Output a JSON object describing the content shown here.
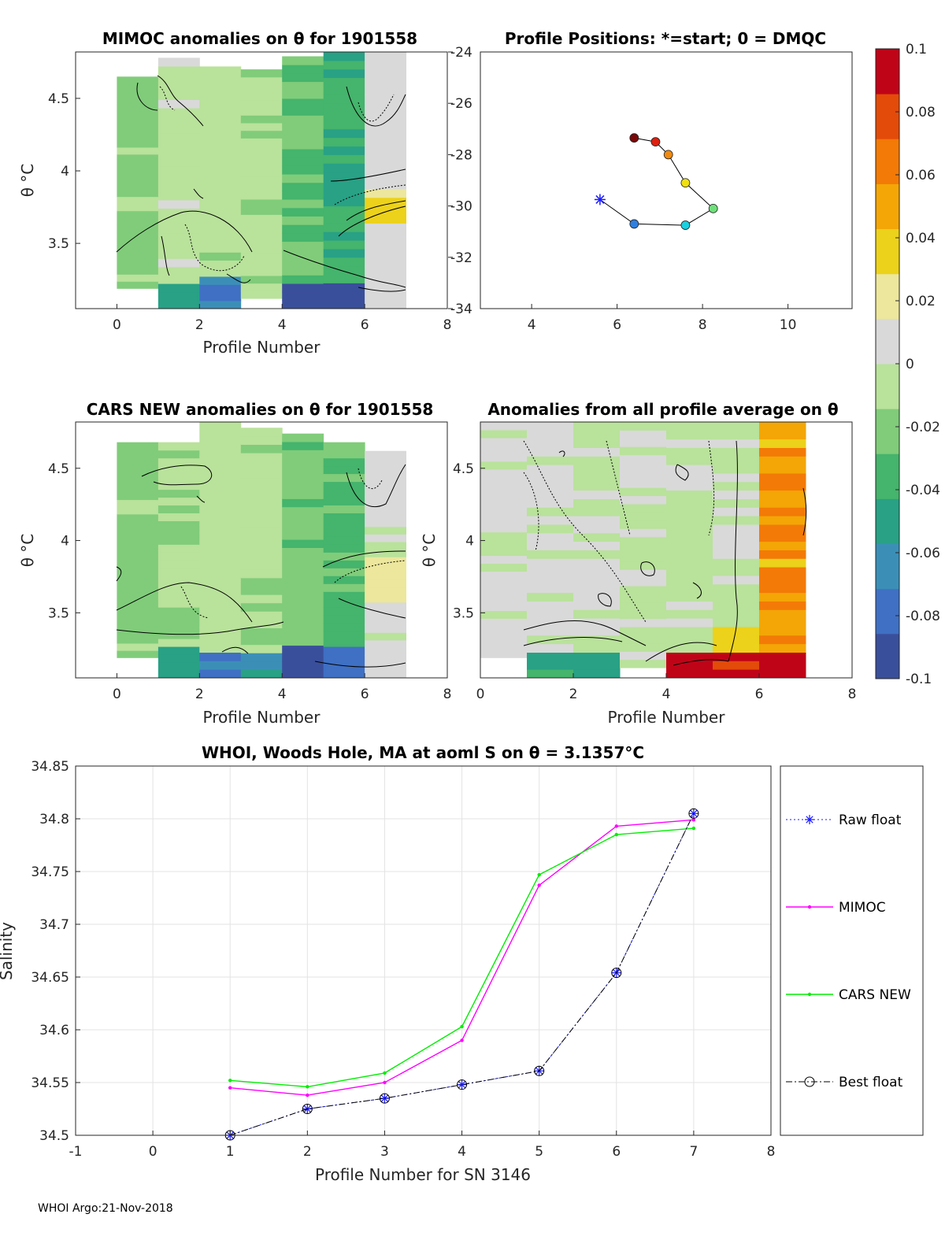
{
  "footer": "WHOI Argo:21-Nov-2018",
  "colors": {
    "mimoc_line": "#ff00ff",
    "cars_line": "#00ee00",
    "raw_float": "#1a1aff",
    "best_float": "#000000",
    "colormap": [
      "#3a4f9b",
      "#3f70c4",
      "#3b8fb7",
      "#28a185",
      "#45b46c",
      "#80cc7a",
      "#b9e29b",
      "#d9d9d9",
      "#ece79c",
      "#ecd21a",
      "#f3a606",
      "#f37a06",
      "#e34b0a",
      "#c00418"
    ]
  },
  "chart_data": [
    {
      "id": "mimoc",
      "type": "heatmap",
      "title": "MIMOC anomalies on θ  for 1901558",
      "xlabel": "Profile Number",
      "ylabel": "θ °C",
      "xlim": [
        -1,
        8
      ],
      "ylim": [
        3.05,
        4.82
      ],
      "xticks": [
        "0",
        "2",
        "4",
        "6",
        "8"
      ],
      "yticks": [
        "3.5",
        "4",
        "4.5"
      ]
    },
    {
      "id": "positions",
      "type": "scatter",
      "title": "Profile Positions: *=start; 0 = DMQC",
      "xlim": [
        2.8,
        11.5
      ],
      "ylim": [
        -34,
        -24
      ],
      "xticks": [
        "4",
        "6",
        "8",
        "10"
      ],
      "yticks": [
        "-24",
        "-26",
        "-28",
        "-30",
        "-32",
        "-34"
      ],
      "points": [
        {
          "lon": 5.6,
          "lat": -29.75,
          "color": "#1a1aff",
          "marker": "star"
        },
        {
          "lon": 6.4,
          "lat": -30.7,
          "color": "#2f7fe0",
          "marker": "circle"
        },
        {
          "lon": 7.6,
          "lat": -30.75,
          "color": "#19d0e0",
          "marker": "circle"
        },
        {
          "lon": 8.25,
          "lat": -30.1,
          "color": "#6ee07a",
          "marker": "circle"
        },
        {
          "lon": 7.6,
          "lat": -29.1,
          "color": "#f0e010",
          "marker": "circle"
        },
        {
          "lon": 7.2,
          "lat": -28.0,
          "color": "#f08a10",
          "marker": "circle"
        },
        {
          "lon": 6.9,
          "lat": -27.5,
          "color": "#dd2010",
          "marker": "circle"
        },
        {
          "lon": 6.4,
          "lat": -27.35,
          "color": "#7a0808",
          "marker": "circle"
        }
      ]
    },
    {
      "id": "colorbar",
      "type": "heatmap",
      "range": [
        -0.1,
        0.1
      ],
      "ticks": [
        "0.1",
        "0.08",
        "0.06",
        "0.04",
        "0.02",
        "0",
        "-0.02",
        "-0.04",
        "-0.06",
        "-0.08",
        "-0.1"
      ]
    },
    {
      "id": "cars",
      "type": "heatmap",
      "title": "CARS NEW anomalies on θ for 1901558",
      "xlabel": "Profile Number",
      "ylabel": "θ °C",
      "xlim": [
        -1,
        8
      ],
      "ylim": [
        3.05,
        4.82
      ],
      "xticks": [
        "0",
        "2",
        "4",
        "6",
        "8"
      ],
      "yticks": [
        "3.5",
        "4",
        "4.5"
      ]
    },
    {
      "id": "avg",
      "type": "heatmap",
      "title": "Anomalies from all profile average on θ",
      "xlabel": "Profile Number",
      "ylabel": "θ °C",
      "xlim": [
        0,
        8
      ],
      "ylim": [
        3.05,
        4.82
      ],
      "xticks": [
        "0",
        "2",
        "4",
        "6",
        "8"
      ],
      "yticks": [
        "3.5",
        "4",
        "4.5"
      ]
    },
    {
      "id": "salinity",
      "type": "line",
      "title": "WHOI, Woods Hole, MA at aoml S on θ = 3.1357°C",
      "xlabel": "Profile Number for SN 3146",
      "ylabel": "Salinity",
      "xlim": [
        -1,
        8
      ],
      "ylim": [
        34.5,
        34.85
      ],
      "xticks": [
        "-1",
        "0",
        "1",
        "2",
        "3",
        "4",
        "5",
        "6",
        "7",
        "8"
      ],
      "yticks": [
        "34.5",
        "34.55",
        "34.6",
        "34.65",
        "34.7",
        "34.75",
        "34.8",
        "34.85"
      ],
      "x": [
        1,
        2,
        3,
        4,
        5,
        6,
        7
      ],
      "series": [
        {
          "name": "Raw float",
          "values": [
            34.5,
            34.525,
            34.535,
            34.548,
            34.561,
            34.654,
            34.805
          ]
        },
        {
          "name": "MIMOC",
          "values": [
            34.545,
            34.538,
            34.55,
            34.59,
            34.737,
            34.793,
            34.799
          ]
        },
        {
          "name": "CARS NEW",
          "values": [
            34.552,
            34.546,
            34.559,
            34.603,
            34.747,
            34.785,
            34.791
          ]
        },
        {
          "name": "Best float",
          "values": [
            34.5,
            34.525,
            34.535,
            34.548,
            34.561,
            34.654,
            34.805
          ]
        }
      ]
    }
  ]
}
